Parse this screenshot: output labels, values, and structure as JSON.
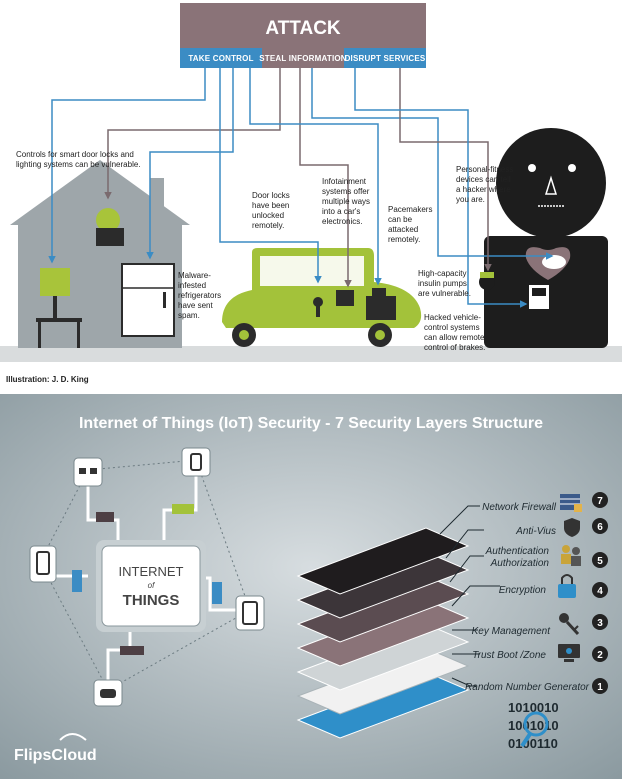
{
  "attack": {
    "title": "ATTACK",
    "tabs": [
      "TAKE CONTROL",
      "STEAL INFORMATION",
      "DISRUPT SERVICES"
    ]
  },
  "callouts": {
    "smart_home": [
      "Controls for smart door locks and",
      "lighting systems can be vulnerable."
    ],
    "fridge": [
      "Malware-",
      "infested",
      "refrigerators",
      "have sent",
      "spam."
    ],
    "door_locks": [
      "Door locks",
      "have been",
      "unlocked",
      "remotely."
    ],
    "infotainment": [
      "Infotainment",
      "systems offer",
      "multiple ways",
      "into a car's",
      "electronics."
    ],
    "pacemakers": [
      "Pacemakers",
      "can be",
      "attacked",
      "remotely."
    ],
    "fitness": [
      "Personal-fitness",
      "devices can tell",
      "a hacker where",
      "you are."
    ],
    "insulin": [
      "High-capacity",
      "insulin pumps",
      "are vulnerable."
    ],
    "brakes": [
      "Hacked vehicle-",
      "control systems",
      "can allow remote",
      "control of brakes."
    ]
  },
  "credit": "Illustration: J. D. King",
  "iot": {
    "title": "Internet of Things (IoT) Security - 7 Security Layers Structure",
    "center": {
      "line1": "INTERNET",
      "line2": "of",
      "line3": "THINGS"
    },
    "layers": [
      {
        "num": "7",
        "label": "Network Firewall"
      },
      {
        "num": "6",
        "label": "Anti-Vius"
      },
      {
        "num": "5",
        "label_line1": "Authentication",
        "label_line2": "Authorization"
      },
      {
        "num": "4",
        "label": "Encryption"
      },
      {
        "num": "3",
        "label": "Key Management"
      },
      {
        "num": "2",
        "label": "Trust Boot /Zone"
      },
      {
        "num": "1",
        "label": "Random Number Generator"
      }
    ],
    "binary": [
      "1010010",
      "1001010",
      "0100110"
    ],
    "brand": "FlipsCloud"
  },
  "colors": {
    "attack_bg": "#8a7378",
    "tab_blue": "#3b8cc4",
    "car": "#a3c23a",
    "house": "#9ea6aa",
    "bottom_bg": "#a4b0b5"
  }
}
